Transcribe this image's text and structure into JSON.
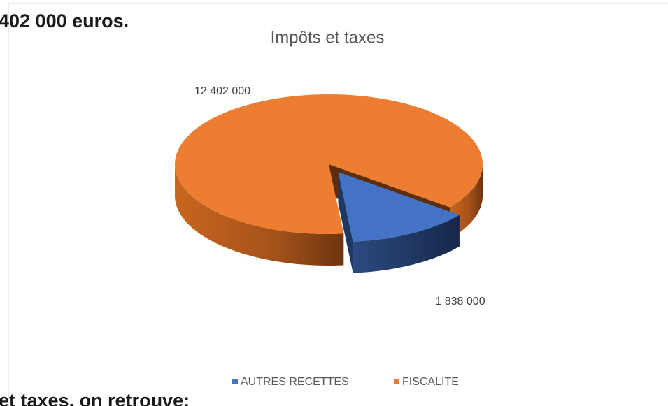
{
  "slide_text": [
    "402 000 euros.",
    "et taxes, on retrouve:"
  ],
  "chart_data": {
    "type": "pie3d",
    "title": "Impôts et taxes",
    "categories": [
      "AUTRES RECETTES",
      "FISCALITE"
    ],
    "values": [
      1838000,
      12402000
    ],
    "value_labels": [
      "1 838 000",
      "12 402 000"
    ],
    "colors": [
      "#4472c4",
      "#ed7d31"
    ],
    "legend": "bottom"
  }
}
